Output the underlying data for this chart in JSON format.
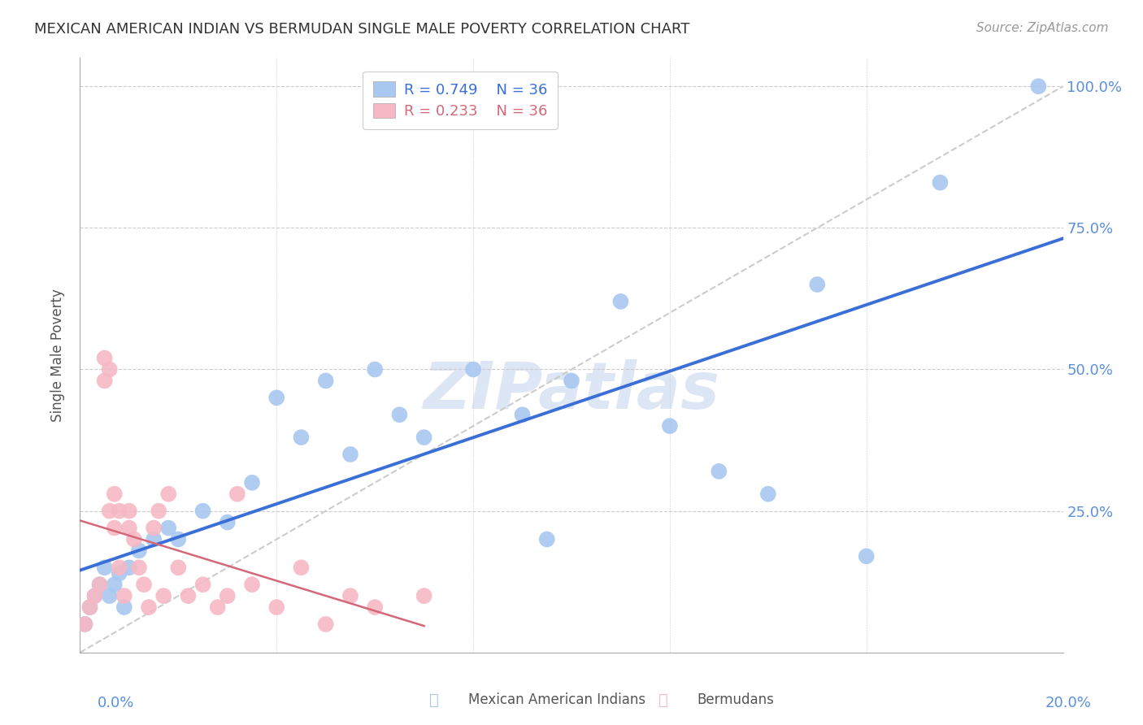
{
  "title": "MEXICAN AMERICAN INDIAN VS BERMUDAN SINGLE MALE POVERTY CORRELATION CHART",
  "source": "Source: ZipAtlas.com",
  "ylabel": "Single Male Poverty",
  "xlim": [
    0.0,
    0.2
  ],
  "ylim": [
    0.0,
    1.05
  ],
  "legend_blue_r": "R = 0.749",
  "legend_blue_n": "N = 36",
  "legend_pink_r": "R = 0.233",
  "legend_pink_n": "N = 36",
  "legend_label_blue": "Mexican American Indians",
  "legend_label_pink": "Bermudans",
  "blue_color": "#a8c8f0",
  "pink_color": "#f5b8c4",
  "blue_line_color": "#3a6fd8",
  "pink_line_color": "#d4687a",
  "ref_line_color": "#cccccc",
  "watermark": "ZIPatlas",
  "blue_scatter_x": [
    0.001,
    0.002,
    0.003,
    0.004,
    0.005,
    0.006,
    0.007,
    0.008,
    0.009,
    0.01,
    0.012,
    0.015,
    0.018,
    0.02,
    0.025,
    0.03,
    0.035,
    0.04,
    0.045,
    0.05,
    0.055,
    0.06,
    0.065,
    0.07,
    0.08,
    0.09,
    0.095,
    0.1,
    0.11,
    0.12,
    0.13,
    0.14,
    0.15,
    0.16,
    0.175,
    0.195
  ],
  "blue_scatter_y": [
    0.05,
    0.08,
    0.1,
    0.12,
    0.15,
    0.1,
    0.12,
    0.14,
    0.08,
    0.15,
    0.18,
    0.2,
    0.22,
    0.2,
    0.25,
    0.23,
    0.3,
    0.45,
    0.38,
    0.48,
    0.35,
    0.5,
    0.42,
    0.38,
    0.5,
    0.42,
    0.2,
    0.48,
    0.62,
    0.4,
    0.32,
    0.28,
    0.65,
    0.17,
    0.83,
    1.0
  ],
  "pink_scatter_x": [
    0.001,
    0.002,
    0.003,
    0.004,
    0.005,
    0.005,
    0.006,
    0.006,
    0.007,
    0.007,
    0.008,
    0.008,
    0.009,
    0.01,
    0.01,
    0.011,
    0.012,
    0.013,
    0.014,
    0.015,
    0.016,
    0.017,
    0.018,
    0.02,
    0.022,
    0.025,
    0.028,
    0.03,
    0.032,
    0.035,
    0.04,
    0.045,
    0.05,
    0.055,
    0.06,
    0.07
  ],
  "pink_scatter_y": [
    0.05,
    0.08,
    0.1,
    0.12,
    0.48,
    0.52,
    0.5,
    0.25,
    0.22,
    0.28,
    0.25,
    0.15,
    0.1,
    0.25,
    0.22,
    0.2,
    0.15,
    0.12,
    0.08,
    0.22,
    0.25,
    0.1,
    0.28,
    0.15,
    0.1,
    0.12,
    0.08,
    0.1,
    0.28,
    0.12,
    0.08,
    0.15,
    0.05,
    0.1,
    0.08,
    0.1
  ]
}
